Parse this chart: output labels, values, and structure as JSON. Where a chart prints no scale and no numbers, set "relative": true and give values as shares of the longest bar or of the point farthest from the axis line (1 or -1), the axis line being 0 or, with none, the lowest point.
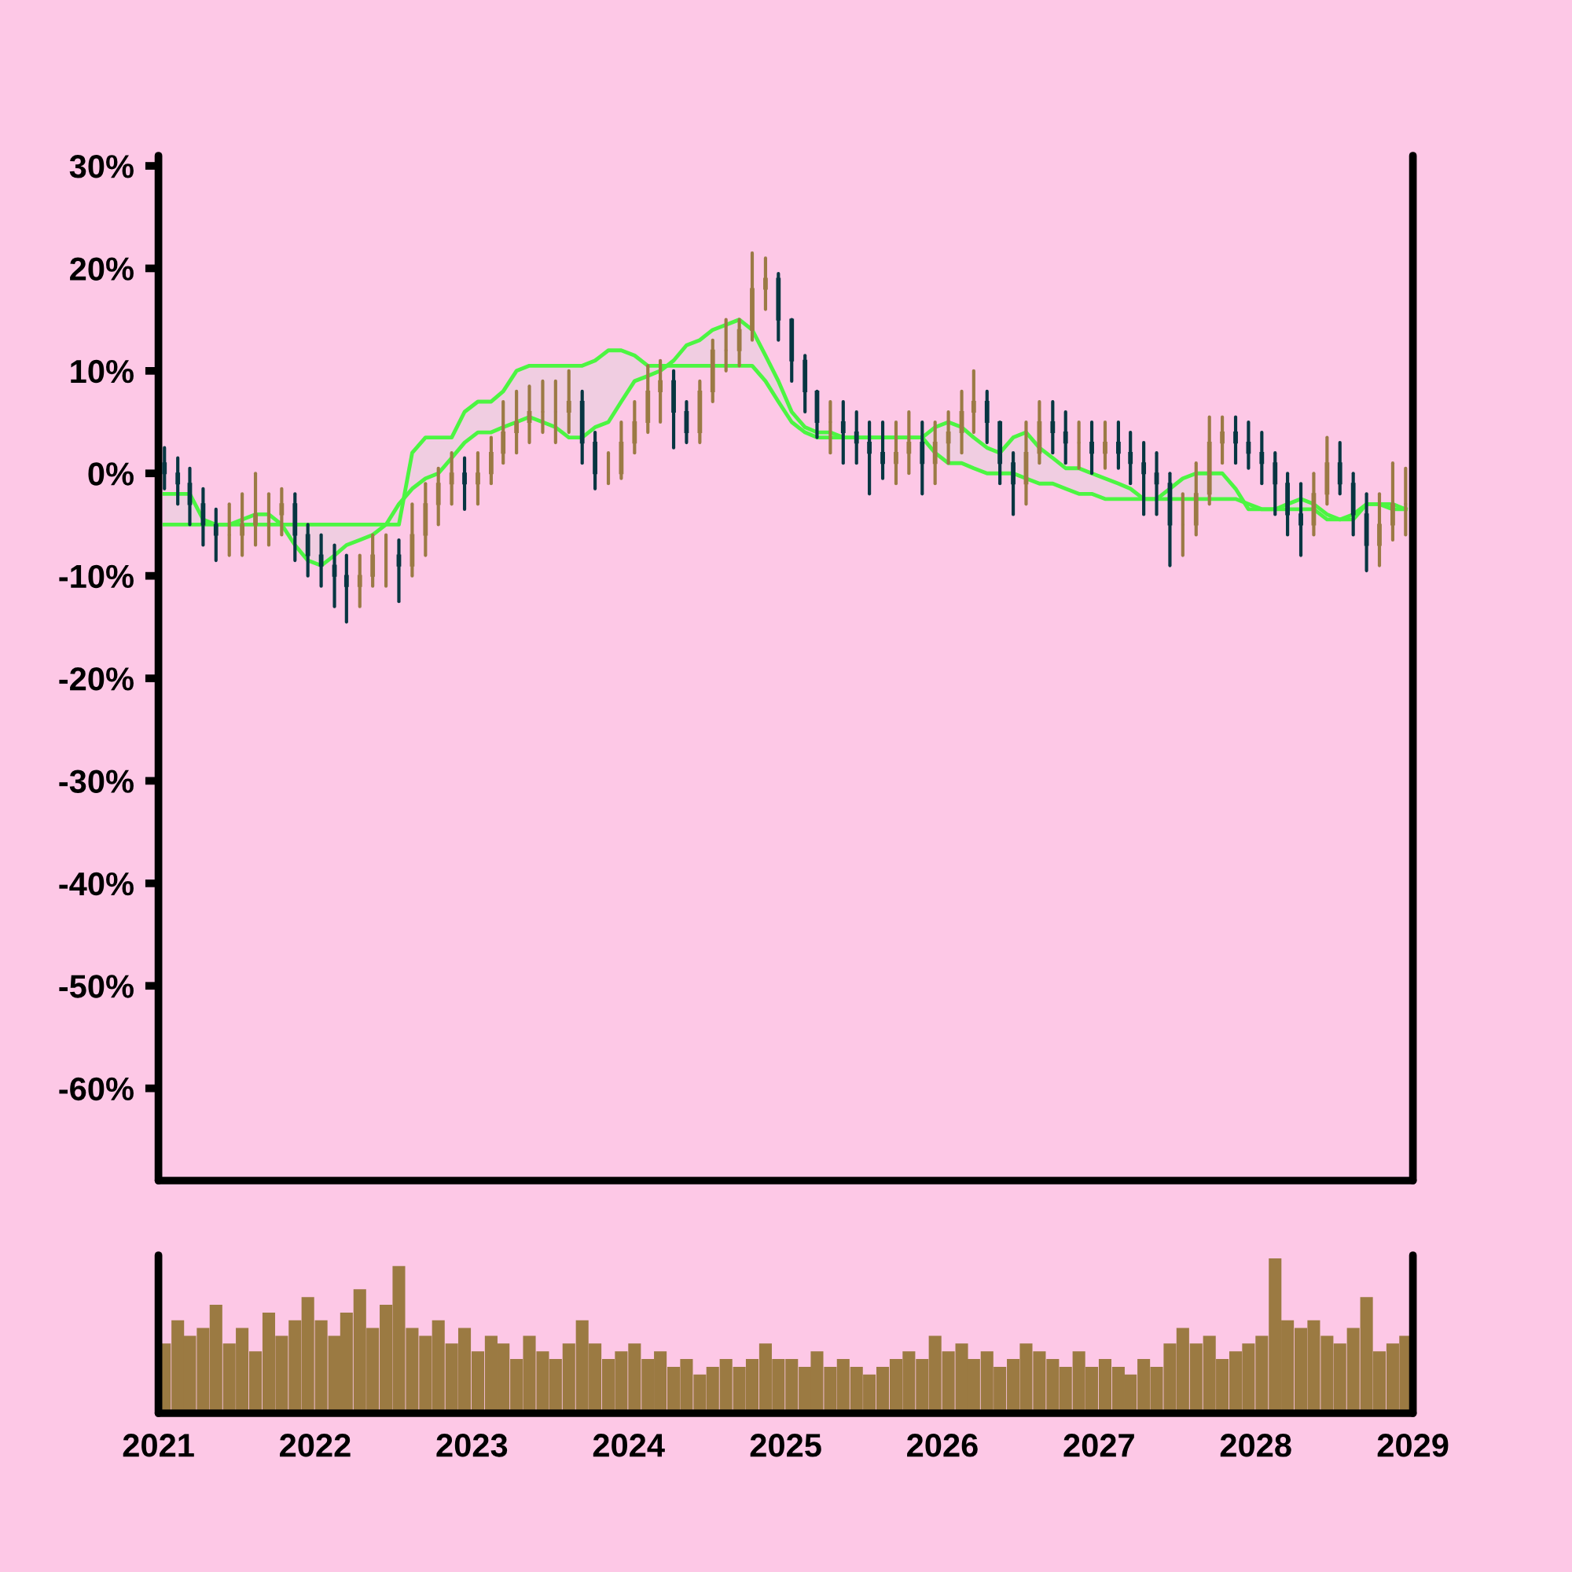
{
  "chart_data": [
    {
      "type": "candlestick",
      "x": [
        "2021-01-15",
        "2021-02-15",
        "2021-03-15",
        "2021-04-15",
        "2021-05-15",
        "2021-06-15",
        "2021-07-15",
        "2021-08-15",
        "2021-09-15",
        "2021-10-15",
        "2021-11-15",
        "2021-12-15",
        "2022-01-15",
        "2022-02-15",
        "2022-03-15",
        "2022-04-15",
        "2022-05-15",
        "2022-06-15",
        "2022-07-15",
        "2022-08-15",
        "2022-09-15",
        "2022-10-15",
        "2022-11-15",
        "2022-12-15",
        "2023-01-15",
        "2023-02-15",
        "2023-03-15",
        "2023-04-15",
        "2023-05-15",
        "2023-06-15",
        "2023-07-15",
        "2023-08-15",
        "2023-09-15",
        "2023-10-15",
        "2023-11-15",
        "2023-12-15",
        "2024-01-15",
        "2024-02-15",
        "2024-03-15",
        "2024-04-15",
        "2024-05-15",
        "2024-06-15",
        "2024-07-15",
        "2024-08-15",
        "2024-09-15",
        "2024-10-15",
        "2024-11-15",
        "2024-12-15",
        "2025-01-15",
        "2025-02-15",
        "2025-03-15",
        "2025-04-15",
        "2025-05-15",
        "2025-06-15",
        "2025-07-15",
        "2025-08-15",
        "2025-09-15",
        "2025-10-15",
        "2025-11-15",
        "2025-12-15",
        "2026-01-15",
        "2026-02-15",
        "2026-03-15",
        "2026-04-15",
        "2026-05-15",
        "2026-06-15",
        "2026-07-15",
        "2026-08-15",
        "2026-09-15",
        "2026-10-15",
        "2026-11-15",
        "2026-12-15",
        "2027-01-15",
        "2027-02-15",
        "2027-03-15",
        "2027-04-15",
        "2027-05-15",
        "2027-06-15",
        "2027-07-15",
        "2027-08-15",
        "2027-09-15",
        "2027-10-15",
        "2027-11-15",
        "2027-12-15",
        "2028-01-15",
        "2028-02-15",
        "2028-03-15",
        "2028-04-15",
        "2028-05-15",
        "2028-06-15",
        "2028-07-15",
        "2028-08-15",
        "2028-09-15",
        "2028-10-15",
        "2028-11-15",
        "2028-12-15"
      ],
      "ohlc": [
        [
          1,
          2.5,
          -1.5,
          0
        ],
        [
          0,
          1.5,
          -3,
          -1
        ],
        [
          -1,
          0.5,
          -5,
          -3
        ],
        [
          -3,
          -1.5,
          -7,
          -5
        ],
        [
          -5,
          -3.5,
          -8.5,
          -6
        ],
        [
          -6,
          -3,
          -8,
          -6
        ],
        [
          -6,
          -2,
          -8,
          -5
        ],
        [
          -5,
          0,
          -7,
          -4
        ],
        [
          -4,
          -2,
          -7,
          -4
        ],
        [
          -4,
          -1.5,
          -6,
          -3
        ],
        [
          -3,
          -2,
          -8.5,
          -6
        ],
        [
          -6,
          -5,
          -10,
          -8
        ],
        [
          -8,
          -6,
          -11,
          -9
        ],
        [
          -9,
          -7,
          -13,
          -10
        ],
        [
          -10,
          -8,
          -14.5,
          -11
        ],
        [
          -11,
          -8,
          -13,
          -10
        ],
        [
          -10,
          -6,
          -11,
          -8
        ],
        [
          -8,
          -6,
          -11,
          -8
        ],
        [
          -8,
          -6.5,
          -12.5,
          -9
        ],
        [
          -9,
          -3,
          -10,
          -6
        ],
        [
          -6,
          -1,
          -8,
          -3
        ],
        [
          -3,
          0.5,
          -5,
          -1
        ],
        [
          -1,
          2,
          -3,
          0
        ],
        [
          0,
          1.5,
          -3.5,
          -1
        ],
        [
          -1,
          2,
          -3,
          0
        ],
        [
          0,
          3.5,
          -1,
          2
        ],
        [
          2,
          7,
          1,
          4
        ],
        [
          4,
          8,
          2,
          5
        ],
        [
          5,
          8.5,
          3,
          6
        ],
        [
          6,
          9,
          4,
          6
        ],
        [
          6,
          9,
          3,
          6
        ],
        [
          6,
          10,
          4,
          7
        ],
        [
          7,
          8,
          1,
          3
        ],
        [
          3,
          4,
          -1.5,
          0
        ],
        [
          0,
          2,
          -1,
          0
        ],
        [
          0,
          5,
          -0.5,
          3
        ],
        [
          3,
          7,
          2,
          5
        ],
        [
          5,
          10.5,
          4,
          8
        ],
        [
          8,
          11,
          5,
          9
        ],
        [
          9,
          10,
          2.5,
          6
        ],
        [
          6,
          7,
          3,
          4
        ],
        [
          4,
          9,
          3,
          8
        ],
        [
          8,
          13,
          7,
          12
        ],
        [
          12,
          15,
          10,
          12
        ],
        [
          12,
          15,
          10.5,
          14
        ],
        [
          14,
          21.5,
          13,
          18
        ],
        [
          18,
          21,
          16,
          19
        ],
        [
          19,
          19.5,
          13,
          15
        ],
        [
          15,
          15,
          9,
          11
        ],
        [
          11,
          11.5,
          6,
          8
        ],
        [
          8,
          8,
          3.5,
          5
        ],
        [
          5,
          7,
          2,
          5
        ],
        [
          5,
          7,
          1,
          4
        ],
        [
          4,
          6,
          1,
          3
        ],
        [
          3,
          5,
          -2,
          2
        ],
        [
          2,
          5,
          -0.5,
          1
        ],
        [
          1,
          5,
          -1,
          2
        ],
        [
          2,
          6,
          0,
          3
        ],
        [
          3,
          5,
          -2,
          1
        ],
        [
          1,
          5,
          -1,
          3
        ],
        [
          3,
          6,
          1,
          4
        ],
        [
          4,
          8,
          2,
          6
        ],
        [
          6,
          10,
          4,
          7
        ],
        [
          7,
          8,
          3,
          5
        ],
        [
          5,
          5,
          -1,
          1
        ],
        [
          1,
          2,
          -4,
          -1
        ],
        [
          -1,
          5,
          -3,
          2
        ],
        [
          2,
          7,
          1,
          5
        ],
        [
          5,
          7,
          2,
          4
        ],
        [
          4,
          6,
          1,
          3
        ],
        [
          3,
          5,
          0.5,
          3
        ],
        [
          3,
          5,
          0,
          2
        ],
        [
          2,
          5,
          0.5,
          3
        ],
        [
          3,
          5,
          0.5,
          2
        ],
        [
          2,
          4,
          -1,
          1
        ],
        [
          1,
          3,
          -4,
          0
        ],
        [
          0,
          2,
          -4,
          -1
        ],
        [
          -1,
          0,
          -9,
          -5
        ],
        [
          -5,
          -2,
          -8,
          -5
        ],
        [
          -5,
          1,
          -6,
          -2
        ],
        [
          -2,
          5.5,
          -3,
          3
        ],
        [
          3,
          5.5,
          1,
          4
        ],
        [
          4,
          5.5,
          1,
          3
        ],
        [
          3,
          5,
          0.5,
          2
        ],
        [
          2,
          4,
          -1,
          1
        ],
        [
          1,
          2,
          -4,
          -1
        ],
        [
          -1,
          0,
          -6,
          -4
        ],
        [
          -4,
          -1,
          -8,
          -5
        ],
        [
          -5,
          0,
          -6,
          -2
        ],
        [
          -2,
          3.5,
          -3,
          1
        ],
        [
          1,
          3,
          -2,
          -1
        ],
        [
          -1,
          0,
          -6,
          -4
        ],
        [
          -4,
          -2,
          -9.5,
          -7
        ],
        [
          -7,
          -2,
          -9,
          -5
        ],
        [
          -5,
          1,
          -6.5,
          -3
        ],
        [
          -3,
          0.5,
          -6,
          -3
        ]
      ],
      "colors": [
        "#073642",
        "#073642",
        "#073642",
        "#073642",
        "#073642",
        "#9b7a45",
        "#9b7a45",
        "#9b7a45",
        "#9b7a45",
        "#9b7a45",
        "#073642",
        "#073642",
        "#073642",
        "#073642",
        "#073642",
        "#9b7a45",
        "#9b7a45",
        "#9b7a45",
        "#073642",
        "#9b7a45",
        "#9b7a45",
        "#9b7a45",
        "#9b7a45",
        "#073642",
        "#9b7a45",
        "#9b7a45",
        "#9b7a45",
        "#9b7a45",
        "#9b7a45",
        "#9b7a45",
        "#9b7a45",
        "#9b7a45",
        "#073642",
        "#073642",
        "#9b7a45",
        "#9b7a45",
        "#9b7a45",
        "#9b7a45",
        "#9b7a45",
        "#073642",
        "#073642",
        "#9b7a45",
        "#9b7a45",
        "#9b7a45",
        "#9b7a45",
        "#9b7a45",
        "#9b7a45",
        "#073642",
        "#073642",
        "#073642",
        "#073642",
        "#9b7a45",
        "#073642",
        "#073642",
        "#073642",
        "#073642",
        "#9b7a45",
        "#9b7a45",
        "#073642",
        "#9b7a45",
        "#9b7a45",
        "#9b7a45",
        "#9b7a45",
        "#073642",
        "#073642",
        "#073642",
        "#9b7a45",
        "#9b7a45",
        "#073642",
        "#073642",
        "#9b7a45",
        "#073642",
        "#9b7a45",
        "#073642",
        "#073642",
        "#073642",
        "#073642",
        "#073642",
        "#9b7a45",
        "#9b7a45",
        "#9b7a45",
        "#9b7a45",
        "#073642",
        "#073642",
        "#073642",
        "#073642",
        "#073642",
        "#073642",
        "#9b7a45",
        "#9b7a45",
        "#073642",
        "#073642",
        "#073642",
        "#9b7a45",
        "#9b7a45",
        "#9b7a45"
      ],
      "series": [
        {
          "type": "line",
          "color": "#4cf542",
          "values": [
            -2,
            -2,
            -2,
            -4.5,
            -5,
            -5,
            -4.5,
            -4,
            -4,
            -5,
            -7,
            -8.5,
            -9,
            -8,
            -7,
            -6.5,
            -6,
            -5,
            -3,
            -1.5,
            -0.5,
            0,
            1.5,
            3,
            4,
            4,
            4.5,
            5,
            5.5,
            5,
            4.5,
            3.5,
            3.5,
            4.5,
            5,
            7,
            9,
            9.5,
            10,
            11,
            12.5,
            13,
            14,
            14.5,
            15,
            14,
            11.5,
            9,
            6,
            4.5,
            4,
            4,
            3.5,
            3.5,
            3.5,
            3.5,
            3.5,
            3.5,
            3.5,
            4.5,
            5,
            4.5,
            3.5,
            2.5,
            2,
            3.5,
            4,
            2.5,
            1.5,
            0.5,
            0.5,
            0,
            -0.5,
            -1,
            -1.5,
            -2.5,
            -2.5,
            -1.5,
            -0.5,
            0,
            0,
            0,
            -1.5,
            -3.5,
            -3.5,
            -3.5,
            -3,
            -2.5,
            -3,
            -4,
            -4.5,
            -4.5,
            -3,
            -3,
            -3.5,
            -3.5
          ]
        },
        {
          "type": "line",
          "color": "#4cf542",
          "values": [
            -5,
            -5,
            -5,
            -5,
            -5,
            -5,
            -5,
            -5,
            -5,
            -5,
            -5,
            -5,
            -5,
            -5,
            -5,
            -5,
            -5,
            -5,
            -5,
            2,
            3.5,
            3.5,
            3.5,
            6,
            7,
            7,
            8,
            10,
            10.5,
            10.5,
            10.5,
            10.5,
            10.5,
            11,
            12,
            12,
            11.5,
            10.5,
            10.5,
            10.5,
            10.5,
            10.5,
            10.5,
            10.5,
            10.5,
            10.5,
            9,
            7,
            5,
            4,
            3.5,
            3.5,
            3.5,
            3.5,
            3.5,
            3.5,
            3.5,
            3.5,
            3.5,
            2,
            1,
            1,
            0.5,
            0,
            0,
            0,
            -0.5,
            -1,
            -1,
            -1.5,
            -2,
            -2,
            -2.5,
            -2.5,
            -2.5,
            -2.5,
            -2.5,
            -2.5,
            -2.5,
            -2.5,
            -2.5,
            -2.5,
            -2.5,
            -3,
            -3.5,
            -3.5,
            -3.5,
            -3.5,
            -3.5,
            -4.5,
            -4.5,
            -4,
            -3,
            -3,
            -3,
            -3.5
          ]
        }
      ],
      "xlim": [
        "2021-01-01",
        "2029-01-01"
      ],
      "ylim": [
        -69,
        31
      ],
      "yticks": [
        {
          "value": 30,
          "label": "30%"
        },
        {
          "value": 20,
          "label": "20%"
        },
        {
          "value": 10,
          "label": "10%"
        },
        {
          "value": 0,
          "label": "0%"
        },
        {
          "value": -10,
          "label": "-10%"
        },
        {
          "value": -20,
          "label": "-20%"
        },
        {
          "value": -30,
          "label": "-30%"
        },
        {
          "value": -40,
          "label": "-40%"
        },
        {
          "value": -50,
          "label": "-50%"
        },
        {
          "value": -60,
          "label": "-60%"
        }
      ],
      "tick_labels": "y"
    },
    {
      "type": "bar",
      "relative": true,
      "color": "#9b7a42",
      "x": [
        "2021-01-15",
        "2021-02-15",
        "2021-03-15",
        "2021-04-15",
        "2021-05-15",
        "2021-06-15",
        "2021-07-15",
        "2021-08-15",
        "2021-09-15",
        "2021-10-15",
        "2021-11-15",
        "2021-12-15",
        "2022-01-15",
        "2022-02-15",
        "2022-03-15",
        "2022-04-15",
        "2022-05-15",
        "2022-06-15",
        "2022-07-15",
        "2022-08-15",
        "2022-09-15",
        "2022-10-15",
        "2022-11-15",
        "2022-12-15",
        "2023-01-15",
        "2023-02-15",
        "2023-03-15",
        "2023-04-15",
        "2023-05-15",
        "2023-06-15",
        "2023-07-15",
        "2023-08-15",
        "2023-09-15",
        "2023-10-15",
        "2023-11-15",
        "2023-12-15",
        "2024-01-15",
        "2024-02-15",
        "2024-03-15",
        "2024-04-15",
        "2024-05-15",
        "2024-06-15",
        "2024-07-15",
        "2024-08-15",
        "2024-09-15",
        "2024-10-15",
        "2024-11-15",
        "2024-12-15",
        "2025-01-15",
        "2025-02-15",
        "2025-03-15",
        "2025-04-15",
        "2025-05-15",
        "2025-06-15",
        "2025-07-15",
        "2025-08-15",
        "2025-09-15",
        "2025-10-15",
        "2025-11-15",
        "2025-12-15",
        "2026-01-15",
        "2026-02-15",
        "2026-03-15",
        "2026-04-15",
        "2026-05-15",
        "2026-06-15",
        "2026-07-15",
        "2026-08-15",
        "2026-09-15",
        "2026-10-15",
        "2026-11-15",
        "2026-12-15",
        "2027-01-15",
        "2027-02-15",
        "2027-03-15",
        "2027-04-15",
        "2027-05-15",
        "2027-06-15",
        "2027-07-15",
        "2027-08-15",
        "2027-09-15",
        "2027-10-15",
        "2027-11-15",
        "2027-12-15",
        "2028-01-15",
        "2028-02-15",
        "2028-03-15",
        "2028-04-15",
        "2028-05-15",
        "2028-06-15",
        "2028-07-15",
        "2028-08-15",
        "2028-09-15",
        "2028-10-15",
        "2028-11-15",
        "2028-12-15"
      ],
      "values": [
        0.45,
        0.6,
        0.5,
        0.55,
        0.7,
        0.45,
        0.55,
        0.4,
        0.65,
        0.5,
        0.6,
        0.75,
        0.6,
        0.5,
        0.65,
        0.8,
        0.55,
        0.7,
        0.95,
        0.55,
        0.5,
        0.6,
        0.45,
        0.55,
        0.4,
        0.5,
        0.45,
        0.35,
        0.5,
        0.4,
        0.35,
        0.45,
        0.6,
        0.45,
        0.35,
        0.4,
        0.45,
        0.35,
        0.4,
        0.3,
        0.35,
        0.25,
        0.3,
        0.35,
        0.3,
        0.35,
        0.45,
        0.35,
        0.35,
        0.3,
        0.4,
        0.3,
        0.35,
        0.3,
        0.25,
        0.3,
        0.35,
        0.4,
        0.35,
        0.5,
        0.4,
        0.45,
        0.35,
        0.4,
        0.3,
        0.35,
        0.45,
        0.4,
        0.35,
        0.3,
        0.4,
        0.3,
        0.35,
        0.3,
        0.25,
        0.35,
        0.3,
        0.45,
        0.55,
        0.45,
        0.5,
        0.35,
        0.4,
        0.45,
        0.5,
        1,
        0.6,
        0.55,
        0.6,
        0.5,
        0.45,
        0.55,
        0.75,
        0.4,
        0.45,
        0.5
      ],
      "xlim": [
        "2021-01-01",
        "2029-01-01"
      ],
      "xticks": [
        "2021",
        "2022",
        "2023",
        "2024",
        "2025",
        "2026",
        "2027",
        "2028",
        "2029"
      ],
      "tick_labels": "x"
    }
  ]
}
